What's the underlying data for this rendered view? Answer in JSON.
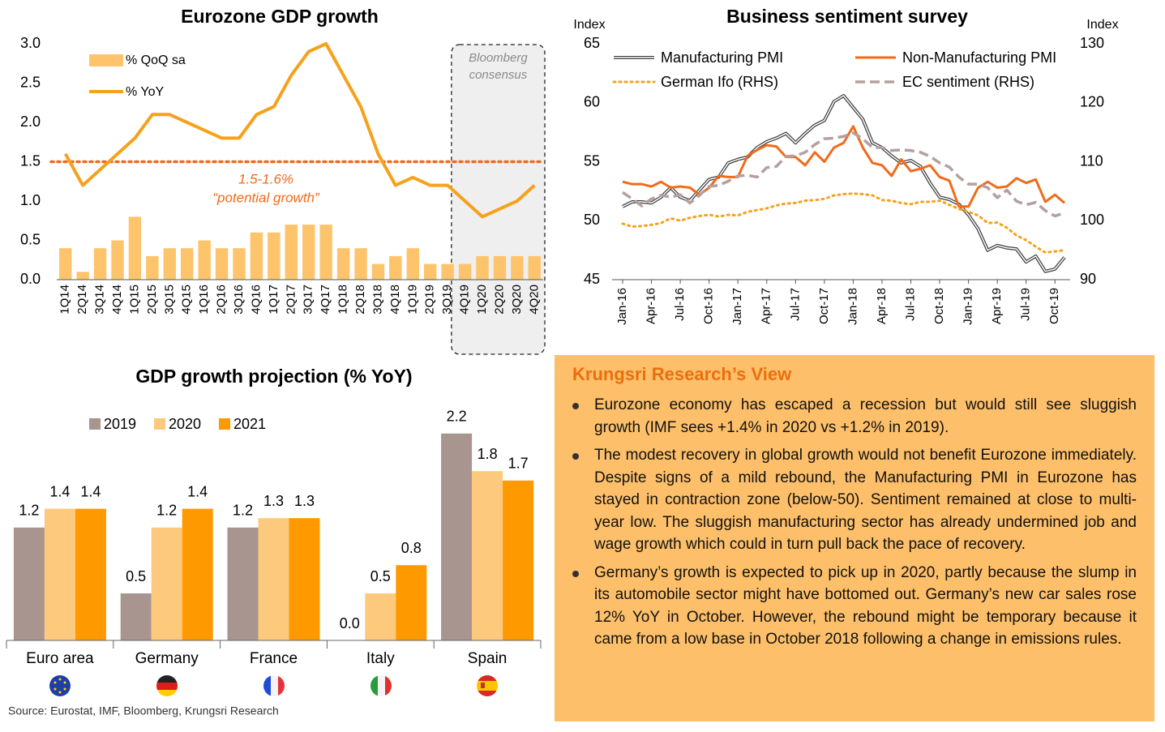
{
  "chart_data": [
    {
      "type": "combo",
      "title": "Eurozone GDP growth",
      "categories": [
        "1Q14",
        "2Q14",
        "3Q14",
        "4Q14",
        "1Q15",
        "2Q15",
        "3Q15",
        "4Q15",
        "1Q16",
        "2Q16",
        "3Q16",
        "4Q16",
        "1Q17",
        "2Q17",
        "3Q17",
        "4Q17",
        "1Q18",
        "2Q18",
        "3Q18",
        "4Q18",
        "1Q19",
        "2Q19",
        "3Q19",
        "4Q19",
        "1Q20",
        "2Q20",
        "3Q20",
        "4Q20"
      ],
      "series": [
        {
          "name": "% QoQ sa",
          "type": "bar",
          "color": "#fdc46c",
          "values": [
            0.4,
            0.1,
            0.4,
            0.5,
            0.8,
            0.3,
            0.4,
            0.4,
            0.5,
            0.4,
            0.4,
            0.6,
            0.6,
            0.7,
            0.7,
            0.7,
            0.4,
            0.4,
            0.2,
            0.3,
            0.4,
            0.2,
            0.2,
            0.2,
            0.3,
            0.3,
            0.3,
            0.3
          ]
        },
        {
          "name": "% YoY",
          "type": "line",
          "color": "#f7a11a",
          "values": [
            1.6,
            1.2,
            1.4,
            1.6,
            1.8,
            2.1,
            2.1,
            2.0,
            1.9,
            1.8,
            1.8,
            2.1,
            2.2,
            2.6,
            2.9,
            3.0,
            2.6,
            2.2,
            1.6,
            1.2,
            1.3,
            1.2,
            1.2,
            1.0,
            0.8,
            0.9,
            1.0,
            1.2
          ]
        }
      ],
      "ylim": [
        0,
        3
      ],
      "yticks": [
        {
          "value": 0,
          "label": "0.0"
        },
        0.5,
        {
          "value": 1,
          "label": "1.0"
        },
        1.5,
        {
          "value": 2,
          "label": "2.0"
        },
        2.5,
        {
          "value": 3,
          "label": "3.0"
        }
      ],
      "reference_line": {
        "value": 1.5,
        "color": "#f26a1b",
        "label": "1.5-1.6%",
        "sublabel": "“potential growth”"
      },
      "shaded_range": {
        "from": "4Q19",
        "to": "4Q20",
        "label_lines": [
          "Bloomberg",
          "consensus"
        ]
      }
    },
    {
      "type": "line",
      "title": "Business sentiment survey",
      "categories": [
        "Jan-16",
        null,
        null,
        "Apr-16",
        null,
        null,
        "Jul-16",
        null,
        null,
        "Oct-16",
        null,
        null,
        "Jan-17",
        null,
        null,
        "Apr-17",
        null,
        null,
        "Jul-17",
        null,
        null,
        "Oct-17",
        null,
        null,
        "Jan-18",
        null,
        null,
        "Apr-18",
        null,
        null,
        "Jul-18",
        null,
        null,
        "Oct-18",
        null,
        null,
        "Jan-19",
        null,
        null,
        "Apr-19",
        null,
        null,
        "Jul-19",
        null,
        null,
        "Oct-19",
        null
      ],
      "series": [
        {
          "name": "Manufacturing PMI",
          "color": "#404040",
          "style": "double",
          "values": [
            51.2,
            51.6,
            51.6,
            51.5,
            52.0,
            52.8,
            52.0,
            51.7,
            52.6,
            53.5,
            53.7,
            54.9,
            55.2,
            55.4,
            56.2,
            56.7,
            57.0,
            57.4,
            56.6,
            57.4,
            58.1,
            58.5,
            60.1,
            60.6,
            59.6,
            58.6,
            56.6,
            56.2,
            55.5,
            54.9,
            55.1,
            54.6,
            53.2,
            52.0,
            51.8,
            51.4,
            50.5,
            49.3,
            47.5,
            47.9,
            47.7,
            47.6,
            46.5,
            47.0,
            45.7,
            45.9,
            46.9
          ]
        },
        {
          "name": "Non-Manufacturing PMI",
          "color": "#f26a1b",
          "style": "solid",
          "values": [
            53.3,
            53.1,
            53.1,
            52.9,
            53.3,
            52.8,
            52.9,
            52.8,
            52.2,
            52.8,
            53.8,
            53.7,
            53.7,
            55.5,
            56.0,
            56.4,
            56.3,
            55.4,
            55.4,
            54.7,
            55.8,
            55.0,
            56.2,
            56.6,
            58.0,
            56.2,
            54.9,
            54.7,
            53.8,
            55.2,
            54.2,
            54.4,
            54.7,
            53.7,
            53.4,
            51.2,
            51.2,
            52.8,
            53.3,
            52.8,
            52.9,
            53.6,
            53.2,
            53.5,
            51.6,
            52.2,
            51.5
          ]
        },
        {
          "name": "German Ifo (RHS)",
          "color": "#f7a11a",
          "style": "dotted",
          "axis": "y2",
          "values": [
            99.5,
            99.0,
            99.1,
            99.3,
            99.6,
            100.4,
            100.0,
            100.5,
            100.8,
            101.0,
            100.7,
            101.0,
            100.9,
            101.5,
            101.8,
            102.1,
            102.6,
            102.9,
            103.0,
            103.4,
            103.5,
            103.7,
            104.3,
            104.5,
            104.6,
            104.5,
            104.3,
            103.5,
            103.4,
            103.0,
            102.8,
            103.2,
            103.2,
            103.4,
            102.7,
            102.0,
            101.5,
            100.9,
            99.6,
            99.7,
            98.8,
            97.5,
            96.7,
            95.6,
            94.6,
            94.8,
            95.0
          ]
        },
        {
          "name": "EC sentiment (RHS)",
          "color": "#b4a0a0",
          "style": "dashed",
          "axis": "y2",
          "values": [
            104.8,
            103.7,
            102.5,
            103.7,
            104.3,
            104.0,
            104.4,
            103.0,
            104.3,
            105.8,
            106.0,
            106.7,
            107.6,
            107.7,
            107.4,
            109.0,
            109.2,
            110.9,
            111.0,
            111.6,
            112.9,
            113.9,
            114.0,
            114.3,
            114.9,
            113.9,
            112.4,
            112.4,
            111.9,
            112.0,
            111.9,
            111.6,
            110.9,
            109.8,
            109.1,
            107.4,
            106.2,
            106.2,
            105.6,
            103.9,
            105.2,
            103.3,
            102.7,
            103.1,
            101.7,
            100.8,
            101.3
          ]
        }
      ],
      "ylim": [
        45,
        65
      ],
      "yticks": [
        45,
        50,
        55,
        60,
        65
      ],
      "y2lim": [
        90,
        130
      ],
      "y2ticks": [
        90,
        100,
        110,
        120,
        130
      ],
      "ylabel": "Index",
      "y2label": "Index"
    },
    {
      "type": "bar",
      "title": "GDP growth projection (% YoY)",
      "categories": [
        "Euro area",
        "Germany",
        "France",
        "Italy",
        "Spain"
      ],
      "series": [
        {
          "name": "2019",
          "color": "#a8958f",
          "values": [
            1.2,
            0.5,
            1.2,
            0.0,
            2.2
          ],
          "value_labels": [
            "1.2",
            "0.5",
            "1.2",
            "0.0",
            "2.2"
          ]
        },
        {
          "name": "2020",
          "color": "#fdc97c",
          "values": [
            1.4,
            1.2,
            1.3,
            0.5,
            1.8
          ]
        },
        {
          "name": "2021",
          "color": "#ff9900",
          "values": [
            1.4,
            1.4,
            1.3,
            0.8,
            1.7
          ]
        }
      ],
      "ylim": [
        0,
        2.5
      ]
    }
  ],
  "view": {
    "title": "Krungsri Research’s View",
    "bullets": [
      "Eurozone economy has escaped a recession but would still see sluggish growth (IMF sees +1.4% in 2020 vs +1.2% in 2019).",
      "The modest recovery in global growth would not benefit Eurozone immediately. Despite signs of a mild rebound, the Manufacturing PMI in Eurozone has stayed in contraction zone (below-50). Sentiment remained at close to multi-year low. The sluggish manufacturing sector has already undermined job and wage growth which could in turn pull back the pace of recovery.",
      "Germany’s growth is expected to pick up in 2020, partly because the slump in its automobile sector might have bottomed out. Germany’s new car sales rose 12% YoY in October. However, the rebound might be temporary because it came from a low base in October 2018 following a change in emissions rules."
    ]
  },
  "source": "Source: Eurostat, IMF, Bloomberg, Krungsri Research"
}
